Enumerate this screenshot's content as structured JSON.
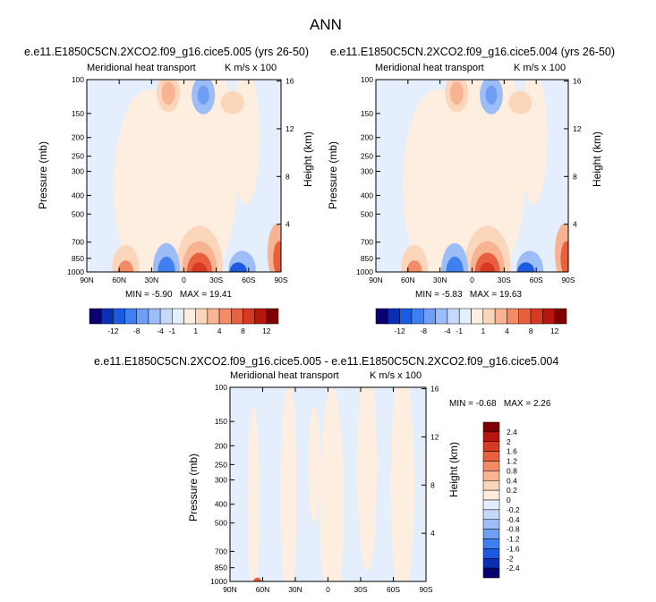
{
  "title": "ANN",
  "colors": {
    "levels": [
      "#08006e",
      "#0a2fb4",
      "#1c5be0",
      "#3f7ff0",
      "#6f9ff5",
      "#9cbdf7",
      "#c6d9fb",
      "#e4eefd",
      "#fdeee0",
      "#fbd6bb",
      "#f7b392",
      "#f28b66",
      "#e8603e",
      "#d73a22",
      "#b8150e",
      "#7f0000"
    ]
  },
  "chart_data": [
    {
      "type": "heatmap",
      "case_title": "e.e11.E1850C5CN.2XCO2.f09_g16.cice5.005 (yrs 26-50)",
      "left_label": "Meridional heat transport",
      "right_label": "K m/s x 100",
      "xlabel": "",
      "ylabel": "Pressure (mb)",
      "y2label": "Height (km)",
      "x_ticks": [
        "90N",
        "60N",
        "30N",
        "0",
        "30S",
        "60S",
        "90S"
      ],
      "y_ticks": [
        "100",
        "150",
        "200",
        "250",
        "300",
        "400",
        "500",
        "700",
        "850",
        "1000"
      ],
      "y2_ticks": [
        "16",
        "12",
        "8",
        "4"
      ],
      "min_label": "MIN =",
      "min_value": "-5.90",
      "max_label": "MAX =",
      "max_value": "19.41",
      "zlim": [
        -5.9,
        19.41
      ]
    },
    {
      "type": "heatmap",
      "case_title": "e.e11.E1850C5CN.2XCO2.f09_g16.cice5.004 (yrs 26-50)",
      "left_label": "Meridional heat transport",
      "right_label": "K m/s x 100",
      "xlabel": "",
      "ylabel": "Pressure (mb)",
      "y2label": "Height (km)",
      "x_ticks": [
        "90N",
        "60N",
        "30N",
        "0",
        "30S",
        "60S",
        "90S"
      ],
      "y_ticks": [
        "100",
        "150",
        "200",
        "250",
        "300",
        "400",
        "500",
        "700",
        "850",
        "1000"
      ],
      "y2_ticks": [
        "16",
        "12",
        "8",
        "4"
      ],
      "min_label": "MIN =",
      "min_value": "-5.83",
      "max_label": "MAX =",
      "max_value": "19.63",
      "zlim": [
        -5.83,
        19.63
      ]
    },
    {
      "type": "heatmap",
      "case_title": "e.e11.E1850C5CN.2XCO2.f09_g16.cice5.005 - e.e11.E1850C5CN.2XCO2.f09_g16.cice5.004",
      "left_label": "Meridional heat transport",
      "right_label": "K m/s x 100",
      "xlabel": "",
      "ylabel": "Pressure (mb)",
      "y2label": "Height (km)",
      "x_ticks": [
        "90N",
        "60N",
        "30N",
        "0",
        "30S",
        "60S",
        "90S"
      ],
      "y_ticks": [
        "100",
        "150",
        "200",
        "250",
        "300",
        "400",
        "500",
        "700",
        "850",
        "1000"
      ],
      "y2_ticks": [
        "16",
        "12",
        "8",
        "4"
      ],
      "min_label": "MIN =",
      "min_value": "-0.68",
      "max_label": "MAX =",
      "max_value": "2.26",
      "zlim": [
        -0.68,
        2.26
      ]
    }
  ],
  "colorbar_top": {
    "labels": [
      "-12",
      "-8",
      "-4",
      "-1",
      "1",
      "4",
      "8",
      "12"
    ]
  },
  "colorbar_diff": {
    "labels": [
      "2.4",
      "2",
      "1.6",
      "1.2",
      "0.8",
      "0.4",
      "0.2",
      "0",
      "-0.2",
      "-0.4",
      "-0.8",
      "-1.2",
      "-1.6",
      "-2",
      "-2.4"
    ]
  }
}
